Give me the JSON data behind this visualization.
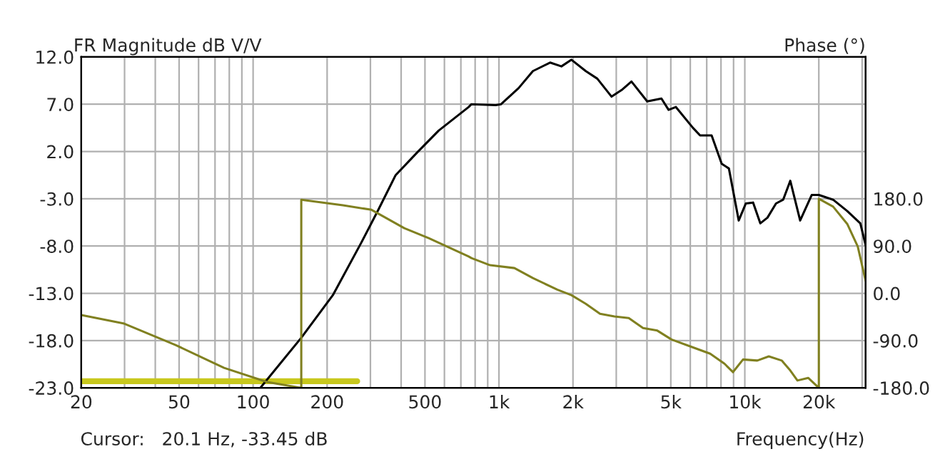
{
  "chart_data": {
    "type": "line",
    "xlabel": "Frequency(Hz)",
    "ylabel": "FR Magnitude dB V/V",
    "y2label": "Phase (°)",
    "annotations": [
      "Cursor:   20.1 Hz, -33.45 dB"
    ],
    "log": "x",
    "grid": true,
    "marker": "none",
    "line_style": "solid",
    "xlim": [
      20,
      31000
    ],
    "xticks": [
      20,
      {
        "value": 30,
        "label": null
      },
      {
        "value": 40,
        "label": null
      },
      50,
      {
        "value": 60,
        "label": null
      },
      {
        "value": 70,
        "label": null
      },
      {
        "value": 80,
        "label": null
      },
      {
        "value": 90,
        "label": null
      },
      {
        "value": 100,
        "label": "100"
      },
      200,
      {
        "value": 300,
        "label": null
      },
      {
        "value": 400,
        "label": null
      },
      500,
      {
        "value": 600,
        "label": null
      },
      {
        "value": 700,
        "label": null
      },
      {
        "value": 800,
        "label": null
      },
      {
        "value": 900,
        "label": null
      },
      {
        "value": 1000,
        "label": "1k"
      },
      {
        "value": 2000,
        "label": "2k"
      },
      {
        "value": 3000,
        "label": null
      },
      {
        "value": 4000,
        "label": null
      },
      {
        "value": 5000,
        "label": "5k"
      },
      {
        "value": 6000,
        "label": null
      },
      {
        "value": 7000,
        "label": null
      },
      {
        "value": 8000,
        "label": null
      },
      {
        "value": 9000,
        "label": null
      },
      {
        "value": 10000,
        "label": "10k"
      },
      {
        "value": 20000,
        "label": "20k"
      },
      {
        "value": 30000,
        "label": null
      }
    ],
    "ylim": [
      -23,
      12
    ],
    "yticks": [
      {
        "value": 12,
        "label": "12.0"
      },
      {
        "value": 7,
        "label": "7.0"
      },
      {
        "value": 2,
        "label": "2.0"
      },
      {
        "value": -3,
        "label": "-3.0"
      },
      {
        "value": -8,
        "label": "-8.0"
      },
      {
        "value": -13,
        "label": "-13.0"
      },
      {
        "value": -18,
        "label": "-18.0"
      },
      {
        "value": -23,
        "label": "-23.0"
      }
    ],
    "y2lim": [
      -180,
      450
    ],
    "y2ticks": [
      {
        "value": 180,
        "label": "180.0"
      },
      {
        "value": 90,
        "label": "90.0"
      },
      {
        "value": 0,
        "label": "0.0"
      },
      {
        "value": -90,
        "label": "-90.0"
      },
      {
        "value": -180,
        "label": "-180.0"
      }
    ],
    "series": [
      {
        "color": "#c8c81e",
        "x": [
          20,
          265
        ],
        "values": [
          -22.3,
          -22.3
        ]
      },
      {
        "color": "#000000",
        "x": [
          107,
          157,
          211,
          276,
          324,
          380,
          465,
          568,
          753,
          773,
          970,
          1020,
          1202,
          1374,
          1614,
          1795,
          1972,
          2255,
          2512,
          2871,
          3155,
          3459,
          4009,
          4580,
          4898,
          5245,
          6152,
          6577,
          7328,
          8052,
          8615,
          9446,
          10093,
          10807,
          11561,
          12362,
          13394,
          14320,
          15310,
          16790,
          18710,
          20000,
          22860,
          26100,
          29500,
          31000
        ],
        "values": [
          -23,
          -17.7,
          -13.2,
          -7.6,
          -4.1,
          -0.5,
          1.9,
          4.2,
          6.7,
          7.0,
          6.9,
          7.0,
          8.7,
          10.5,
          11.4,
          11.0,
          11.7,
          10.5,
          9.7,
          7.8,
          8.5,
          9.4,
          7.3,
          7.6,
          6.4,
          6.7,
          4.5,
          3.7,
          3.7,
          0.7,
          0.2,
          -5.3,
          -3.5,
          -3.4,
          -5.6,
          -5.0,
          -3.5,
          -3.1,
          -1.1,
          -5.3,
          -2.6,
          -2.6,
          -3.1,
          -4.3,
          -5.6,
          -7.9
        ]
      },
      {
        "color": "#808020",
        "axis": "y2",
        "x": [
          20,
          29.9,
          48.4,
          76.2,
          114,
          157,
          157,
          232,
          303,
          412,
          518,
          753,
          773,
          920,
          1156,
          1374,
          1727,
          1972,
          2255,
          2576,
          2950,
          3373,
          3855,
          4406,
          5036,
          5998,
          7230,
          8264,
          8954,
          9834,
          11240,
          12520,
          14130,
          15310,
          16370,
          18100,
          20000,
          20000,
          22860,
          26100,
          28800,
          31000
        ],
        "values": [
          -41.5,
          -57.8,
          -98.5,
          -142,
          -169,
          -180,
          178,
          167.5,
          159,
          124,
          105,
          70,
          67,
          53.5,
          48,
          29,
          7,
          -3.5,
          -20,
          -39,
          -44,
          -47,
          -66,
          -71,
          -88,
          -101,
          -115,
          -134,
          -150,
          -126,
          -128,
          -120,
          -128,
          -147,
          -166,
          -161,
          -180,
          180,
          165,
          132,
          89,
          24
        ]
      }
    ]
  }
}
